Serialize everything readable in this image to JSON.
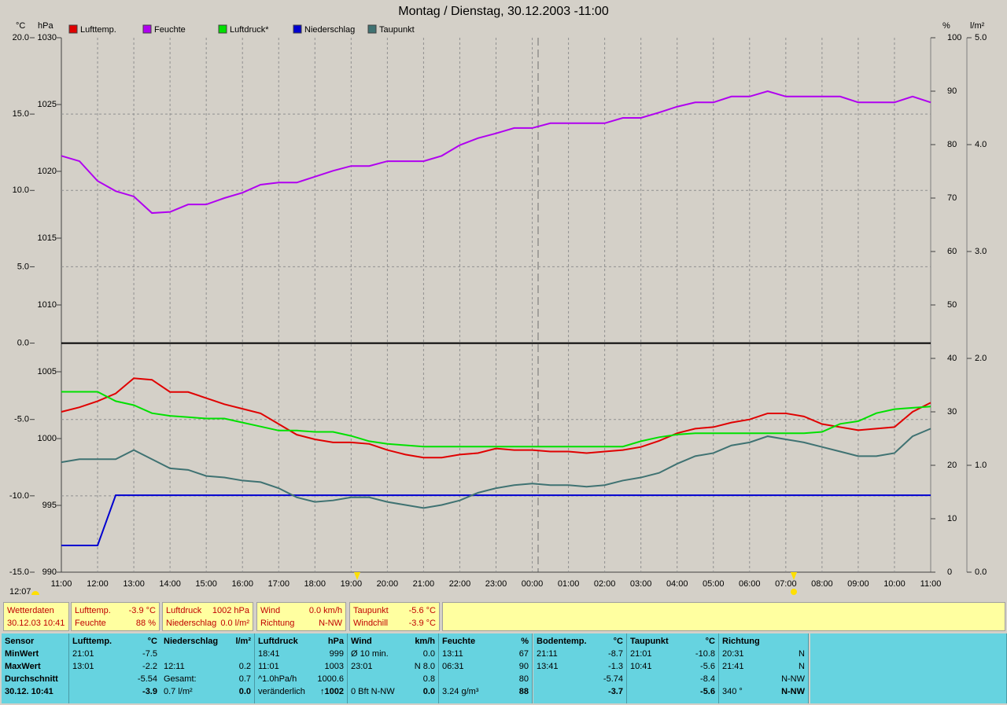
{
  "chart_data": {
    "type": "line",
    "title": "Montag / Dienstag, 30.12.2003  -11:00",
    "ylabel": "°C",
    "y2label": "hPa",
    "y3label": "%",
    "y4label": "l/m²",
    "time_marker": "12:07",
    "categories": [
      "11:00",
      null,
      "12:00",
      null,
      "13:00",
      null,
      "14:00",
      null,
      "15:00",
      null,
      "16:00",
      null,
      "17:00",
      null,
      "18:00",
      null,
      "19:00",
      null,
      "20:00",
      null,
      "21:00",
      null,
      "22:00",
      null,
      "23:00",
      null,
      "00:00",
      null,
      "01:00",
      null,
      "02:00",
      null,
      "03:00",
      null,
      "04:00",
      null,
      "05:00",
      null,
      "06:00",
      null,
      "07:00",
      null,
      "08:00",
      null,
      "09:00",
      null,
      "10:00",
      null,
      "11:00"
    ],
    "ylim": [
      -15,
      20
    ],
    "yticks": [
      {
        "value": -15,
        "label": "-15.0"
      },
      {
        "value": -10,
        "label": "-10.0"
      },
      {
        "value": -5,
        "label": "-5.0"
      },
      {
        "value": 0,
        "label": "0.0"
      },
      {
        "value": 5,
        "label": "5.0"
      },
      {
        "value": 10,
        "label": "10.0"
      },
      {
        "value": 15,
        "label": "15.0"
      },
      {
        "value": 20,
        "label": "20.0"
      }
    ],
    "y2lim": [
      990,
      1030
    ],
    "y2ticks": [
      990,
      995,
      1000,
      1005,
      1010,
      1015,
      1020,
      1025,
      1030
    ],
    "y3lim": [
      0,
      100
    ],
    "y3ticks": [
      0,
      10,
      20,
      30,
      40,
      50,
      60,
      70,
      80,
      90,
      100
    ],
    "y4lim": [
      0,
      5
    ],
    "y4ticks": [
      {
        "value": 0,
        "label": "0.0"
      },
      {
        "value": 1,
        "label": "1.0"
      },
      {
        "value": 2,
        "label": "2.0"
      },
      {
        "value": 3,
        "label": "3.0"
      },
      {
        "value": 4,
        "label": "4.0"
      },
      {
        "value": 5,
        "label": "5.0"
      }
    ],
    "grid": true,
    "series": [
      {
        "name": "Lufttemp.",
        "color": "#e00000",
        "axis": "y",
        "values": [
          -4.5,
          -4.2,
          -3.8,
          -3.3,
          -2.3,
          -2.4,
          -3.2,
          -3.2,
          -3.6,
          -4.0,
          -4.3,
          -4.6,
          -5.3,
          -6.0,
          -6.3,
          -6.5,
          -6.5,
          -6.6,
          -7.0,
          -7.3,
          -7.5,
          -7.5,
          -7.3,
          -7.2,
          -6.9,
          -7.0,
          -7.0,
          -7.1,
          -7.1,
          -7.2,
          -7.1,
          -7.0,
          -6.8,
          -6.4,
          -5.9,
          -5.6,
          -5.5,
          -5.2,
          -5.0,
          -4.6,
          -4.6,
          -4.8,
          -5.3,
          -5.5,
          -5.7,
          -5.6,
          -5.5,
          -4.5,
          -3.9
        ]
      },
      {
        "name": "Feuchte",
        "color": "#b000f0",
        "axis": "y3",
        "values": [
          77.9,
          76.9,
          73.2,
          71.3,
          70.3,
          67.2,
          67.4,
          68.8,
          68.8,
          70.0,
          71.0,
          72.5,
          72.9,
          72.9,
          74.0,
          75.1,
          76.0,
          76.0,
          76.9,
          76.9,
          76.9,
          77.9,
          79.9,
          81.2,
          82.1,
          83.1,
          83.1,
          84.0,
          84.0,
          84.0,
          84.0,
          85.0,
          85.0,
          86.0,
          87.1,
          87.9,
          87.9,
          89.0,
          89.0,
          90.0,
          89.0,
          89.0,
          89.0,
          89.0,
          87.9,
          87.9,
          87.9,
          89.0,
          87.9
        ]
      },
      {
        "name": "Luftdruck*",
        "color": "#00e000",
        "axis": "y2",
        "values": [
          1003.5,
          1003.5,
          1003.5,
          1002.8,
          1002.5,
          1001.9,
          1001.7,
          1001.6,
          1001.5,
          1001.5,
          1001.2,
          1000.9,
          1000.6,
          1000.6,
          1000.5,
          1000.5,
          1000.2,
          999.8,
          999.6,
          999.5,
          999.4,
          999.4,
          999.4,
          999.4,
          999.4,
          999.4,
          999.4,
          999.4,
          999.4,
          999.4,
          999.4,
          999.4,
          999.8,
          1000.1,
          1000.3,
          1000.4,
          1000.4,
          1000.4,
          1000.4,
          1000.4,
          1000.4,
          1000.4,
          1000.5,
          1001.1,
          1001.3,
          1001.9,
          1002.2,
          1002.3,
          1002.4
        ]
      },
      {
        "name": "Niederschlag",
        "color": "#0000d0",
        "axis": "y4",
        "values": [
          0.25,
          0.25,
          0.25,
          0.72,
          0.72,
          0.72,
          0.72,
          0.72,
          0.72,
          0.72,
          0.72,
          0.72,
          0.72,
          0.72,
          0.72,
          0.72,
          0.72,
          0.72,
          0.72,
          0.72,
          0.72,
          0.72,
          0.72,
          0.72,
          0.72,
          0.72,
          0.72,
          0.72,
          0.72,
          0.72,
          0.72,
          0.72,
          0.72,
          0.72,
          0.72,
          0.72,
          0.72,
          0.72,
          0.72,
          0.72,
          0.72,
          0.72,
          0.72,
          0.72,
          0.72,
          0.72,
          0.72,
          0.72,
          0.72
        ]
      },
      {
        "name": "Taupunkt",
        "color": "#3f7272",
        "axis": "y",
        "values": [
          -7.8,
          -7.6,
          -7.6,
          -7.6,
          -7.0,
          -7.6,
          -8.2,
          -8.3,
          -8.7,
          -8.8,
          -9.0,
          -9.1,
          -9.5,
          -10.1,
          -10.4,
          -10.3,
          -10.1,
          -10.1,
          -10.4,
          -10.6,
          -10.8,
          -10.6,
          -10.3,
          -9.8,
          -9.5,
          -9.3,
          -9.2,
          -9.3,
          -9.3,
          -9.4,
          -9.3,
          -9.0,
          -8.8,
          -8.5,
          -7.9,
          -7.4,
          -7.2,
          -6.7,
          -6.5,
          -6.1,
          -6.3,
          -6.5,
          -6.8,
          -7.1,
          -7.4,
          -7.4,
          -7.2,
          -6.1,
          -5.6
        ]
      }
    ]
  },
  "info_bar": [
    [
      [
        "Wetterdaten"
      ],
      [
        "30.12.03 10:41"
      ]
    ],
    [
      [
        "Lufttemp.",
        "-3.9 °C"
      ],
      [
        "Feuchte",
        "88 %"
      ]
    ],
    [
      [
        "Luftdruck",
        "1002 hPa"
      ],
      [
        "Niederschlag",
        "0.0 l/m²"
      ]
    ],
    [
      [
        "Wind",
        "0.0 km/h"
      ],
      [
        "Richtung",
        "N-NW"
      ]
    ],
    [
      [
        "Taupunkt",
        "-5.6 °C"
      ],
      [
        "Windchill",
        "-3.9 °C"
      ]
    ]
  ],
  "table": {
    "corner": "Sensor",
    "row_labels": [
      "MinWert",
      "MaxWert",
      "Durchschnitt",
      "30.12. 10:41"
    ],
    "columns": [
      {
        "name": "Lufttemp.",
        "unit": "°C",
        "rows": [
          [
            "21:01",
            "-7.5"
          ],
          [
            "13:01",
            "-2.2"
          ],
          [
            null,
            "-5.54"
          ],
          [
            null,
            "-3.9"
          ]
        ]
      },
      {
        "name": "Niederschlag",
        "unit": "l/m²",
        "rows": [
          [
            null,
            null
          ],
          [
            "12:11",
            "0.2"
          ],
          [
            "Gesamt:",
            "0.7"
          ],
          [
            "0.7 l/m²",
            "0.0"
          ]
        ]
      },
      {
        "name": "Luftdruck",
        "unit": "hPa",
        "rows": [
          [
            "18:41",
            "999"
          ],
          [
            "11:01",
            "1003"
          ],
          [
            "^1.0hPa/h",
            "1000.6"
          ],
          [
            "veränderlich",
            "↑1002"
          ]
        ]
      },
      {
        "name": "Wind",
        "unit": "km/h",
        "rows": [
          [
            "Ø 10 min.",
            "0.0"
          ],
          [
            "23:01",
            "N 8.0"
          ],
          [
            null,
            "0.8"
          ],
          [
            "0 Bft N-NW",
            "0.0"
          ]
        ]
      },
      {
        "name": "Feuchte",
        "unit": "%",
        "rows": [
          [
            "13:11",
            "67"
          ],
          [
            "06:31",
            "90"
          ],
          [
            null,
            "80"
          ],
          [
            "3.24 g/m³",
            "88"
          ]
        ]
      },
      {
        "name": "Bodentemp.",
        "unit": "°C",
        "rows": [
          [
            "21:11",
            "-8.7"
          ],
          [
            "13:41",
            "-1.3"
          ],
          [
            null,
            "-5.74"
          ],
          [
            null,
            "-3.7"
          ]
        ]
      },
      {
        "name": "Taupunkt",
        "unit": "°C",
        "rows": [
          [
            "21:01",
            "-10.8"
          ],
          [
            "10:41",
            "-5.6"
          ],
          [
            null,
            "-8.4"
          ],
          [
            null,
            "-5.6"
          ]
        ]
      },
      {
        "name": "Richtung",
        "unit": null,
        "rows": [
          [
            "20:31",
            "N"
          ],
          [
            "21:41",
            "N"
          ],
          [
            null,
            "N-NW"
          ],
          [
            "340 °",
            "N-NW"
          ]
        ]
      }
    ]
  }
}
